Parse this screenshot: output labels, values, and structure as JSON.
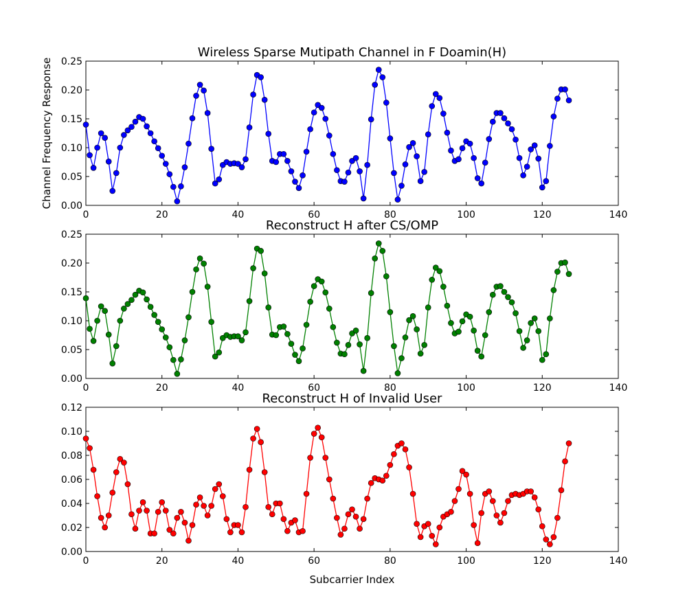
{
  "chart_data": [
    {
      "type": "line",
      "title": "Wireless Sparse Mutipath Channel in F Doamin(H)",
      "xlabel": "",
      "ylabel": "Channel Frequency Response",
      "xlim": [
        0,
        140
      ],
      "ylim": [
        0,
        0.25
      ],
      "xticks": [
        "0",
        "20",
        "40",
        "60",
        "80",
        "100",
        "120",
        "140"
      ],
      "yticks": [
        "0.00",
        "0.05",
        "0.10",
        "0.15",
        "0.20",
        "0.25"
      ],
      "color": "#0000ff",
      "series": [
        {
          "values": [
            0.14,
            0.087,
            0.065,
            0.1,
            0.125,
            0.117,
            0.076,
            0.025,
            0.056,
            0.1,
            0.122,
            0.13,
            0.136,
            0.145,
            0.153,
            0.15,
            0.137,
            0.125,
            0.111,
            0.099,
            0.086,
            0.072,
            0.054,
            0.032,
            0.007,
            0.033,
            0.066,
            0.107,
            0.151,
            0.19,
            0.209,
            0.199,
            0.16,
            0.098,
            0.038,
            0.045,
            0.07,
            0.075,
            0.072,
            0.073,
            0.072,
            0.066,
            0.08,
            0.135,
            0.192,
            0.226,
            0.222,
            0.183,
            0.124,
            0.077,
            0.075,
            0.089,
            0.089,
            0.077,
            0.059,
            0.041,
            0.03,
            0.052,
            0.093,
            0.132,
            0.161,
            0.174,
            0.169,
            0.15,
            0.121,
            0.089,
            0.061,
            0.042,
            0.041,
            0.057,
            0.077,
            0.082,
            0.059,
            0.012,
            0.07,
            0.149,
            0.209,
            0.235,
            0.222,
            0.178,
            0.116,
            0.056,
            0.01,
            0.034,
            0.071,
            0.101,
            0.108,
            0.085,
            0.042,
            0.058,
            0.123,
            0.172,
            0.193,
            0.186,
            0.159,
            0.126,
            0.095,
            0.077,
            0.08,
            0.099,
            0.111,
            0.107,
            0.082,
            0.047,
            0.038,
            0.074,
            0.115,
            0.145,
            0.16,
            0.16,
            0.151,
            0.142,
            0.132,
            0.114,
            0.082,
            0.052,
            0.067,
            0.097,
            0.104,
            0.081,
            0.031,
            0.042,
            0.103,
            0.154,
            0.185,
            0.201,
            0.201,
            0.182
          ]
        }
      ]
    },
    {
      "type": "line",
      "title": "Reconstruct H after CS/OMP",
      "xlabel": "",
      "ylabel": "",
      "xlim": [
        0,
        140
      ],
      "ylim": [
        0,
        0.25
      ],
      "xticks": [
        "0",
        "20",
        "40",
        "60",
        "80",
        "100",
        "120",
        "140"
      ],
      "yticks": [
        "0.00",
        "0.05",
        "0.10",
        "0.15",
        "0.20",
        "0.25"
      ],
      "color": "#008000",
      "series": [
        {
          "values": [
            0.139,
            0.086,
            0.065,
            0.1,
            0.125,
            0.117,
            0.076,
            0.026,
            0.056,
            0.1,
            0.121,
            0.129,
            0.136,
            0.145,
            0.152,
            0.149,
            0.137,
            0.124,
            0.11,
            0.098,
            0.085,
            0.071,
            0.054,
            0.032,
            0.008,
            0.033,
            0.066,
            0.106,
            0.15,
            0.189,
            0.208,
            0.199,
            0.159,
            0.098,
            0.038,
            0.045,
            0.07,
            0.075,
            0.072,
            0.073,
            0.073,
            0.066,
            0.08,
            0.134,
            0.191,
            0.225,
            0.221,
            0.182,
            0.123,
            0.076,
            0.075,
            0.089,
            0.09,
            0.077,
            0.06,
            0.041,
            0.03,
            0.052,
            0.093,
            0.133,
            0.16,
            0.172,
            0.168,
            0.149,
            0.121,
            0.089,
            0.062,
            0.043,
            0.042,
            0.058,
            0.078,
            0.083,
            0.059,
            0.013,
            0.07,
            0.148,
            0.208,
            0.234,
            0.221,
            0.177,
            0.115,
            0.056,
            0.009,
            0.035,
            0.071,
            0.101,
            0.108,
            0.085,
            0.043,
            0.058,
            0.123,
            0.171,
            0.192,
            0.186,
            0.159,
            0.126,
            0.096,
            0.078,
            0.081,
            0.099,
            0.111,
            0.107,
            0.083,
            0.048,
            0.038,
            0.075,
            0.115,
            0.145,
            0.159,
            0.16,
            0.15,
            0.141,
            0.132,
            0.113,
            0.082,
            0.053,
            0.066,
            0.096,
            0.104,
            0.082,
            0.032,
            0.042,
            0.104,
            0.153,
            0.185,
            0.2,
            0.201,
            0.181
          ]
        }
      ]
    },
    {
      "type": "line",
      "title": "Reconstruct H of Invalid User",
      "xlabel": "Subcarrier Index",
      "ylabel": "",
      "xlim": [
        0,
        140
      ],
      "ylim": [
        0,
        0.12
      ],
      "xticks": [
        "0",
        "20",
        "40",
        "60",
        "80",
        "100",
        "120",
        "140"
      ],
      "yticks": [
        "0.00",
        "0.02",
        "0.04",
        "0.06",
        "0.08",
        "0.10",
        "0.12"
      ],
      "color": "#ff0000",
      "series": [
        {
          "values": [
            0.094,
            0.086,
            0.068,
            0.046,
            0.028,
            0.02,
            0.03,
            0.049,
            0.066,
            0.077,
            0.074,
            0.056,
            0.031,
            0.019,
            0.034,
            0.041,
            0.034,
            0.015,
            0.015,
            0.033,
            0.041,
            0.034,
            0.018,
            0.015,
            0.028,
            0.033,
            0.024,
            0.009,
            0.022,
            0.039,
            0.045,
            0.038,
            0.03,
            0.038,
            0.052,
            0.056,
            0.046,
            0.027,
            0.016,
            0.022,
            0.022,
            0.016,
            0.037,
            0.068,
            0.094,
            0.102,
            0.091,
            0.066,
            0.037,
            0.031,
            0.04,
            0.04,
            0.027,
            0.017,
            0.024,
            0.026,
            0.016,
            0.017,
            0.048,
            0.078,
            0.098,
            0.103,
            0.095,
            0.078,
            0.06,
            0.044,
            0.028,
            0.014,
            0.019,
            0.031,
            0.035,
            0.029,
            0.019,
            0.027,
            0.044,
            0.057,
            0.061,
            0.06,
            0.059,
            0.063,
            0.072,
            0.081,
            0.088,
            0.09,
            0.085,
            0.07,
            0.048,
            0.023,
            0.012,
            0.021,
            0.023,
            0.013,
            0.006,
            0.02,
            0.029,
            0.031,
            0.033,
            0.042,
            0.052,
            0.067,
            0.064,
            0.048,
            0.022,
            0.007,
            0.032,
            0.048,
            0.05,
            0.042,
            0.03,
            0.024,
            0.032,
            0.042,
            0.047,
            0.048,
            0.047,
            0.048,
            0.05,
            0.05,
            0.045,
            0.035,
            0.021,
            0.01,
            0.006,
            0.012,
            0.028,
            0.051,
            0.075,
            0.09
          ]
        }
      ]
    }
  ]
}
